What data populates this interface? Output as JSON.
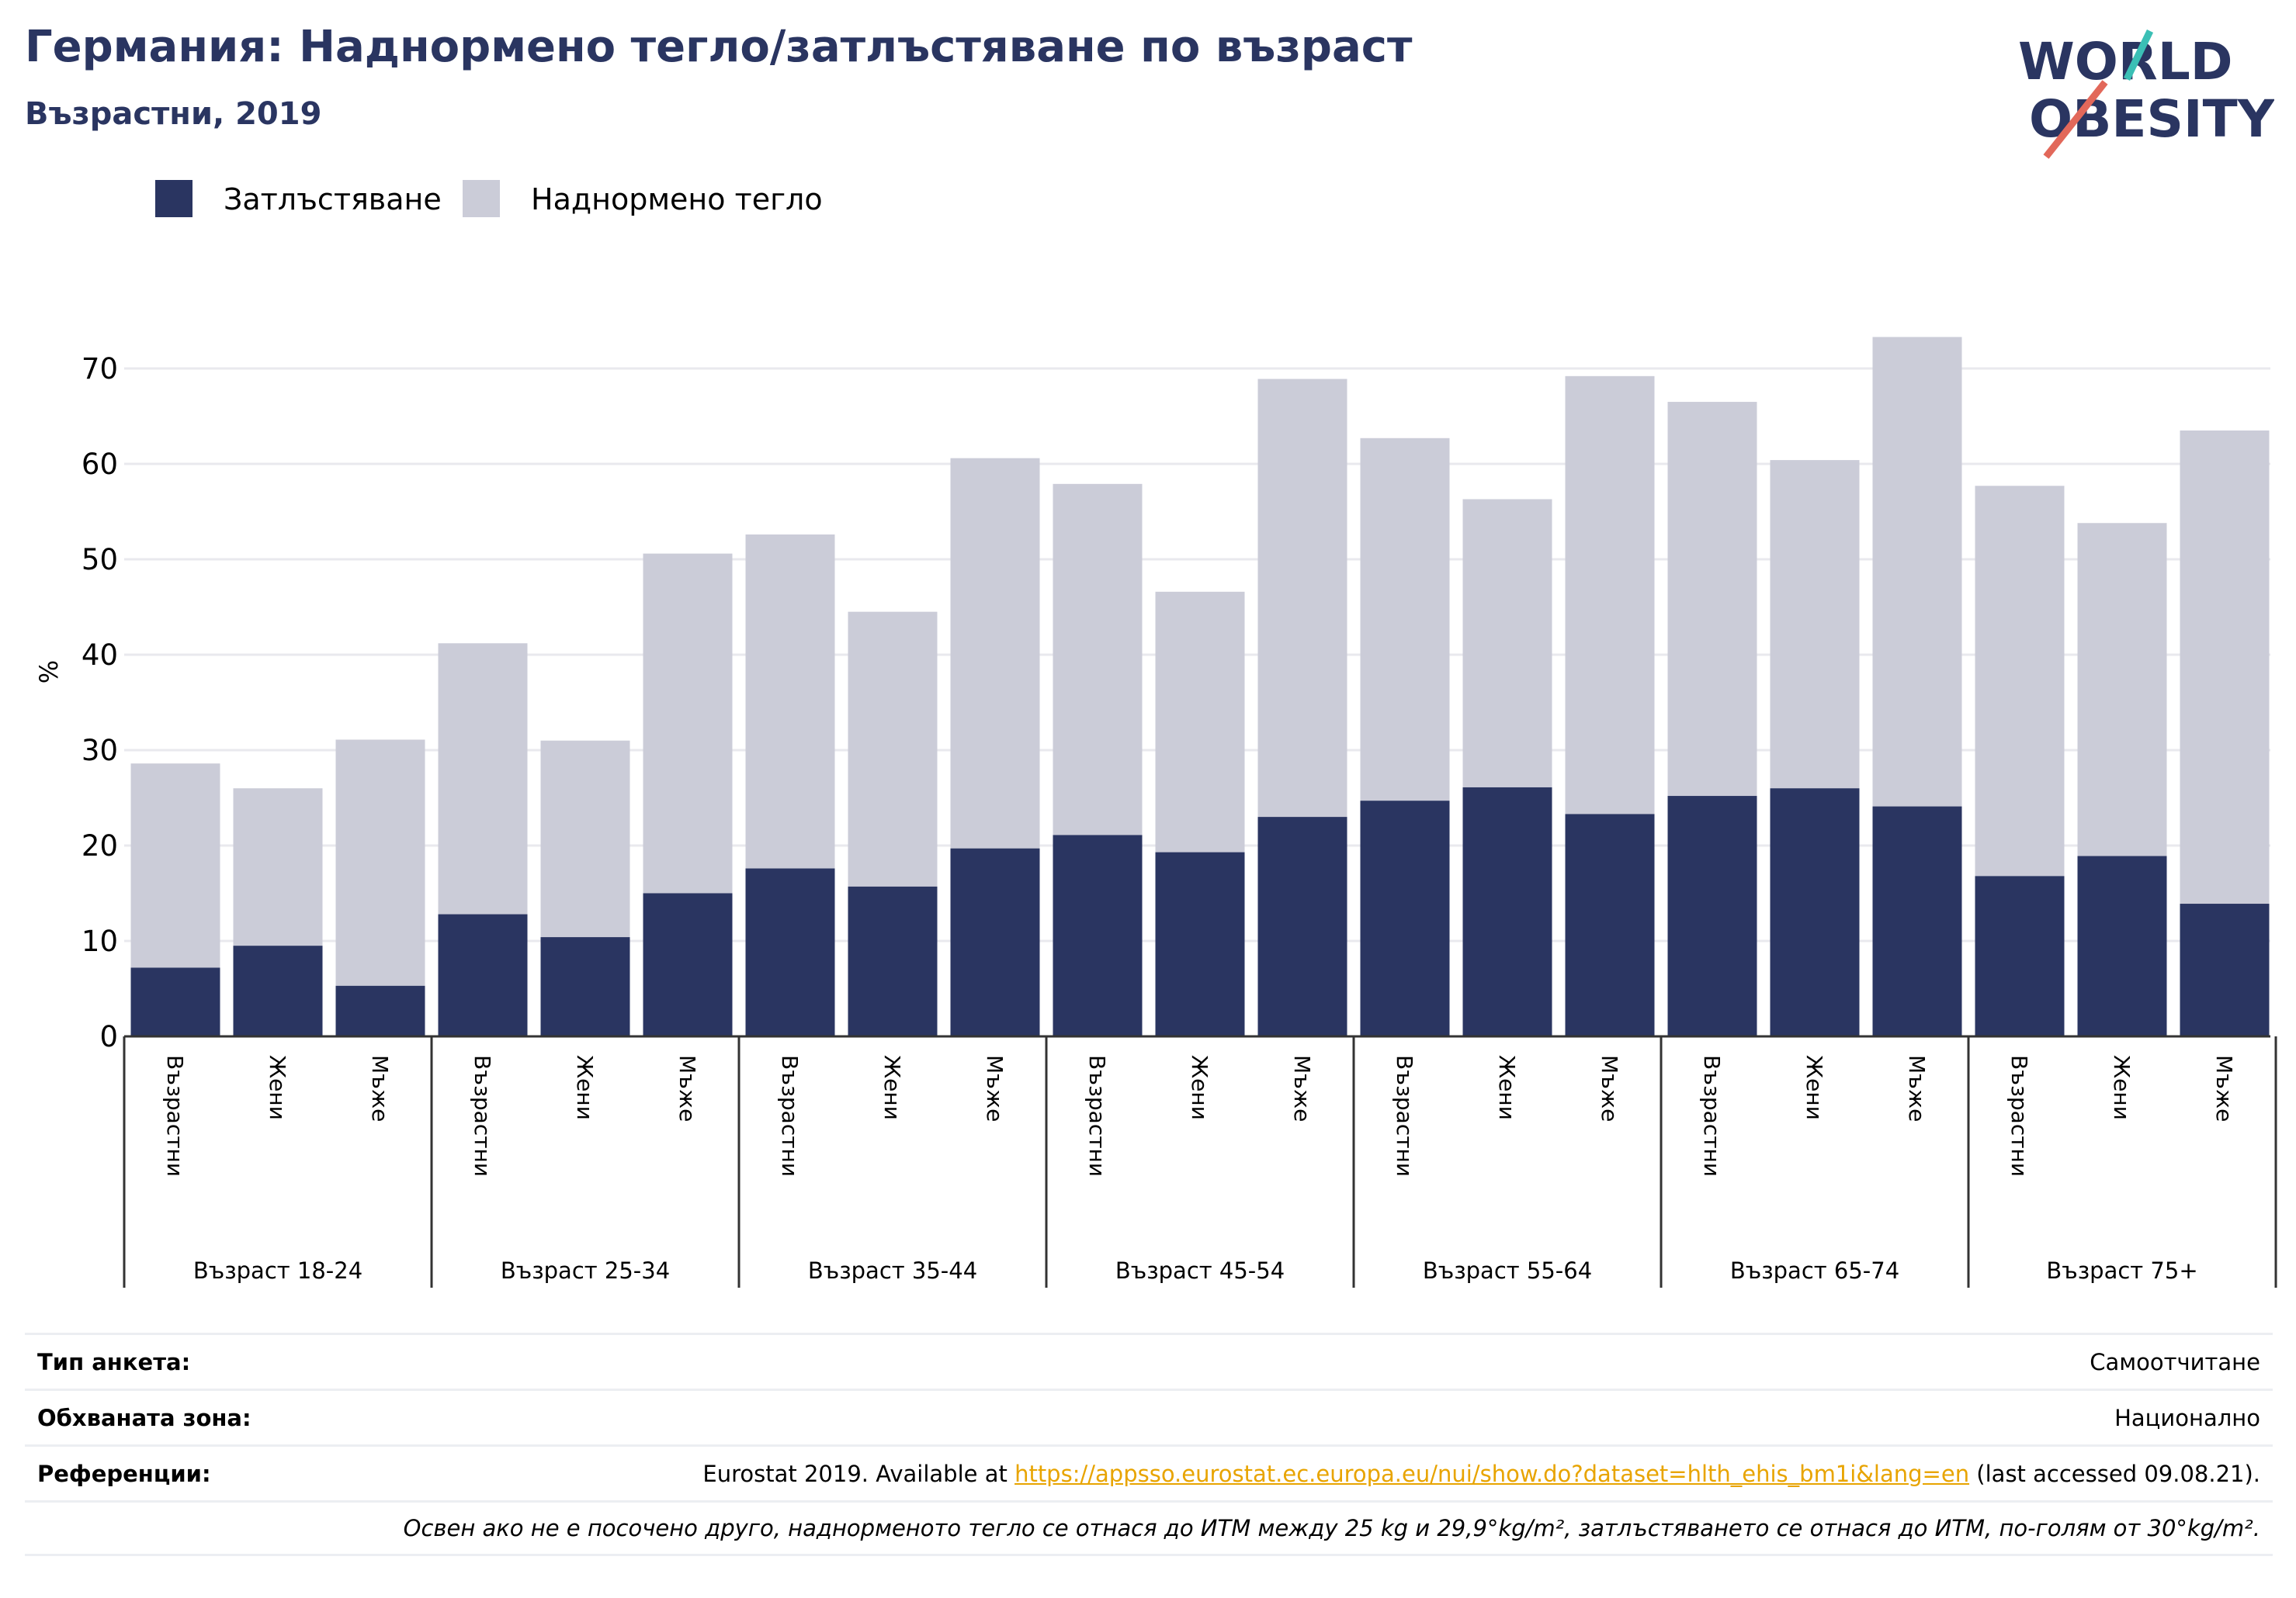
{
  "header": {
    "title": "Германия: Наднормено тегло/затлъстяване по възраст",
    "subtitle": "Възрастни, 2019",
    "logo_line1": "WORLD",
    "logo_line2": "OBESITY"
  },
  "colors": {
    "obesity": "#2a3561",
    "overweight": "#cbccd8",
    "title": "#2a3561",
    "link": "#e8a400",
    "logo_teal": "#3bbfb5",
    "logo_coral": "#e2685a"
  },
  "chart_data": {
    "type": "bar",
    "stacked": true,
    "ylabel": "%",
    "ylim": [
      0,
      75
    ],
    "yticks": [
      0,
      10,
      20,
      30,
      40,
      50,
      60,
      70
    ],
    "grid": true,
    "legend_position": "top-left",
    "groups": [
      "Възраст 18-24",
      "Възраст 25-34",
      "Възраст 35-44",
      "Възраст 45-54",
      "Възраст 55-64",
      "Възраст 65-74",
      "Възраст 75+"
    ],
    "subcategories": [
      "Възрастни",
      "Жени",
      "Мъже"
    ],
    "series": [
      {
        "name": "Затлъстяване",
        "values": [
          7.2,
          9.5,
          5.3,
          12.8,
          10.4,
          15.0,
          17.6,
          15.7,
          19.7,
          21.1,
          19.3,
          23.0,
          24.7,
          26.1,
          23.3,
          25.2,
          26.0,
          24.1,
          16.8,
          18.9,
          13.9
        ]
      },
      {
        "name": "Наднормено тегло",
        "values": [
          21.4,
          16.5,
          25.8,
          28.4,
          20.6,
          35.6,
          35.0,
          28.8,
          40.9,
          36.8,
          27.3,
          45.9,
          38.0,
          30.2,
          45.9,
          41.3,
          34.4,
          49.2,
          40.9,
          34.9,
          49.6
        ]
      }
    ]
  },
  "info": {
    "survey_type_label": "Тип анкета:",
    "survey_type_value": "Самоотчитане",
    "coverage_label": "Обхваната зона:",
    "coverage_value": "Национално",
    "references_label": "Референции:",
    "references_prefix": "Eurostat 2019. Available at ",
    "references_link": "https://appsso.eurostat.ec.europa.eu/nui/show.do?dataset=hlth_ehis_bm1i&lang=en",
    "references_suffix": " (last accessed 09.08.21).",
    "note": "Освен ако не е посочено друго, наднорменото тегло се отнася до ИТМ между 25 kg и 29,9°kg/m², затлъстяването се отнася до ИТМ, по-голям от 30°kg/m²."
  }
}
